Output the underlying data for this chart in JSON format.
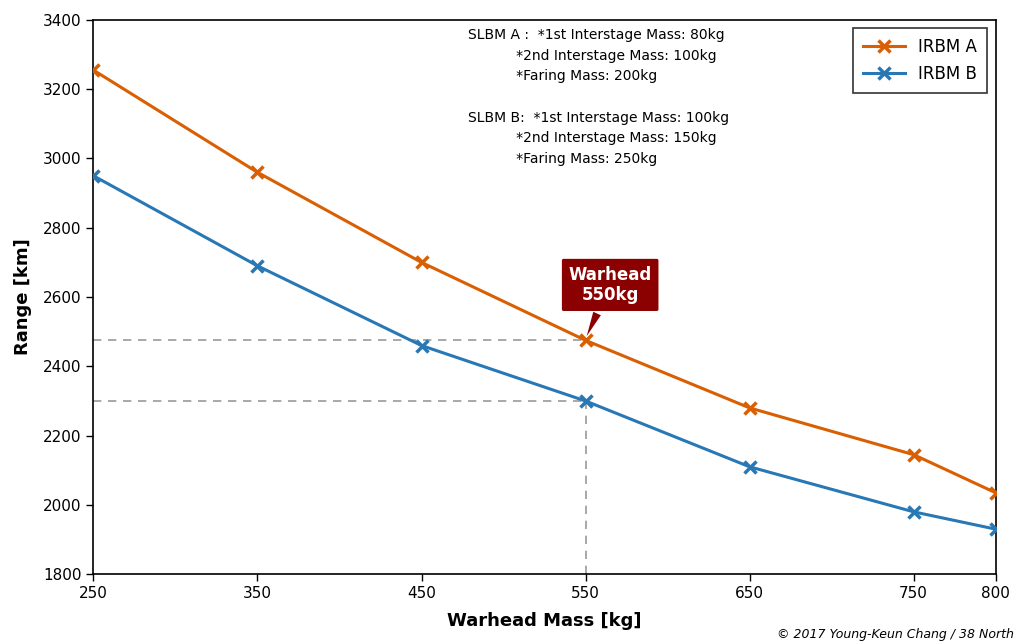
{
  "irbm_a_x": [
    250,
    350,
    450,
    550,
    650,
    750,
    800
  ],
  "irbm_a_y": [
    3255,
    2960,
    2700,
    2475,
    2280,
    2145,
    2035
  ],
  "irbm_b_x": [
    250,
    350,
    450,
    550,
    650,
    750,
    800
  ],
  "irbm_b_y": [
    2950,
    2690,
    2460,
    2300,
    2110,
    1980,
    1930
  ],
  "color_a": "#d95f02",
  "color_b": "#2878b5",
  "xlim": [
    250,
    800
  ],
  "ylim": [
    1800,
    3400
  ],
  "xticks": [
    250,
    350,
    450,
    550,
    650,
    750,
    800
  ],
  "yticks": [
    1800,
    2000,
    2200,
    2400,
    2600,
    2800,
    3000,
    3200,
    3400
  ],
  "xlabel": "Warhead Mass [kg]",
  "ylabel": "Range [km]",
  "slbm_a_line1": "SLBM A :  *1st Interstage Mass: 80kg",
  "slbm_a_line2": "           *2nd Interstage Mass: 100kg",
  "slbm_a_line3": "           *Faring Mass: 200kg",
  "slbm_b_line1": "SLBM B:  *1st Interstage Mass: 100kg",
  "slbm_b_line2": "           *2nd Interstage Mass: 150kg",
  "slbm_b_line3": "           *Faring Mass: 250kg",
  "warhead_label": "Warhead\n550kg",
  "warhead_x": 550,
  "dashed_hline_a": 2475,
  "dashed_hline_b": 2300,
  "copyright": "© 2017 Young-Keun Chang / 38 North",
  "legend_a": "IRBM A",
  "legend_b": "IRBM B",
  "bg_color": "#ffffff",
  "warhead_box_color": "#8B0000",
  "dashed_color": "#999999"
}
